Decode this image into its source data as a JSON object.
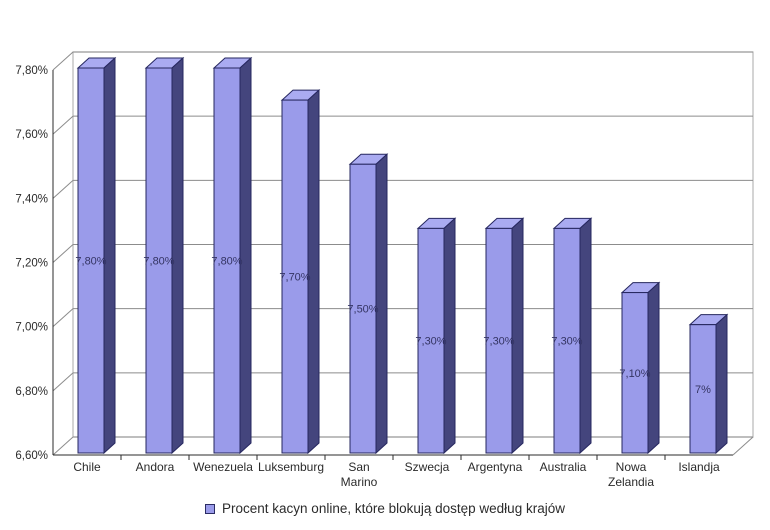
{
  "legend": {
    "label": "Procent kacyn online, które blokują dostęp według krajów",
    "marker_color": "#9a9bea"
  },
  "chart_data": {
    "type": "bar",
    "style": "3d-column",
    "title": "",
    "categories": [
      "Chile",
      "Andora",
      "Wenezuela",
      "Luksemburg",
      "San Marino",
      "Szwecja",
      "Argentyna",
      "Australia",
      "Nowa Zelandia",
      "Islandja"
    ],
    "values": [
      7.8,
      7.8,
      7.8,
      7.7,
      7.5,
      7.3,
      7.3,
      7.3,
      7.1,
      7.0
    ],
    "bar_labels": [
      "7,80%",
      "7,80%",
      "7,80%",
      "7,70%",
      "7,50%",
      "7,30%",
      "7,30%",
      "7,30%",
      "7,10%",
      "7%"
    ],
    "y_ticks": [
      "7,80%",
      "7,60%",
      "7,40%",
      "7,20%",
      "7,00%",
      "6,80%",
      "6,60%"
    ],
    "y_tick_values": [
      7.8,
      7.6,
      7.4,
      7.2,
      7.0,
      6.8,
      6.6
    ],
    "ylim": [
      6.6,
      7.8
    ],
    "grid": "horizontal",
    "legend_position": "bottom",
    "legend_label": "Procent kacyn online, które blokują dostęp według krajów",
    "colors": {
      "bar_front": "#9a9bea",
      "bar_top": "#aaabf1",
      "bar_side": "#44457d",
      "bar_border": "#26275f",
      "grid_line": "#8c8c8c",
      "wall_frame": "#b8b8b8",
      "axis_line": "#2b2b2b",
      "bar_label_text": "#343463",
      "tick_label_text": "#2b2b2b"
    }
  }
}
